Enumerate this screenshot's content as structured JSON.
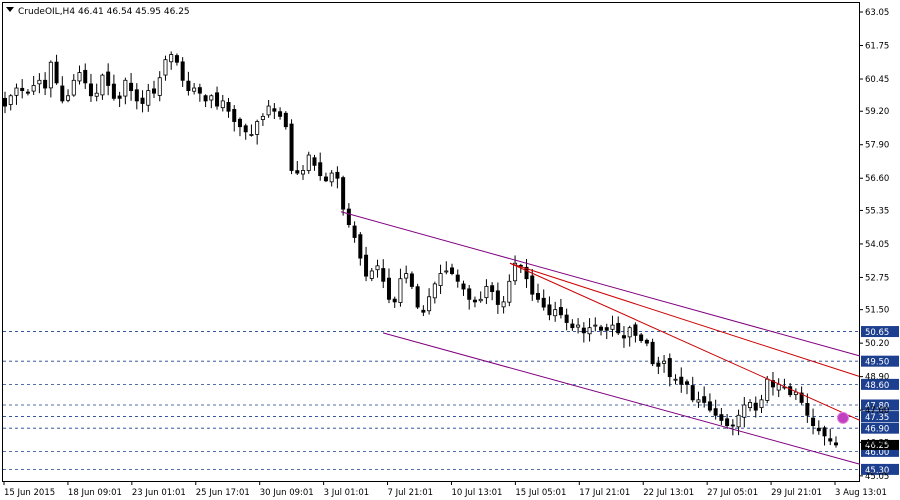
{
  "header": {
    "symbol": "CrudeOIL,H4",
    "ohlc": "46.41 46.54 45.95 46.25"
  },
  "colors": {
    "background": "#ffffff",
    "candle": "#000000",
    "level_line": "#1c3f8f",
    "level_box": "#1c3f8f",
    "channel": "#800080",
    "fan": "#cc0000",
    "marker": "#c040c0"
  },
  "chart_data": {
    "type": "candlestick",
    "title": "CrudeOIL,H4",
    "ylim": [
      44.85,
      63.4
    ],
    "y_ticks": [
      "63.05",
      "61.75",
      "60.45",
      "59.20",
      "57.90",
      "56.60",
      "55.35",
      "54.05",
      "52.75",
      "51.50",
      "50.20",
      "48.90",
      "47.60",
      "46.35",
      "45.05"
    ],
    "x_ticks": [
      "15 Jun 2015",
      "18 Jun 09:01",
      "23 Jun 01:01",
      "25 Jun 17:01",
      "30 Jun 09:01",
      "3 Jul 01:01",
      "7 Jul 21:01",
      "10 Jul 13:01",
      "15 Jul 05:01",
      "17 Jul 21:01",
      "22 Jul 13:01",
      "27 Jul 05:01",
      "29 Jul 21:01",
      "3 Aug 13:01"
    ],
    "levels": [
      "50.65",
      "49.50",
      "48.60",
      "47.80",
      "47.35",
      "46.90",
      "46.00",
      "45.30"
    ],
    "current_price": "46.25",
    "closes": [
      59.4,
      59.8,
      60.1,
      60.0,
      59.9,
      60.2,
      60.4,
      60.1,
      61.1,
      60.3,
      59.6,
      59.8,
      60.4,
      60.7,
      60.3,
      59.8,
      59.9,
      60.6,
      60.2,
      59.7,
      59.7,
      60.4,
      60.0,
      59.6,
      59.5,
      60.0,
      59.9,
      60.5,
      61.2,
      61.4,
      61.1,
      60.4,
      60.0,
      60.1,
      59.9,
      59.6,
      59.8,
      59.4,
      59.6,
      59.2,
      58.8,
      58.6,
      58.4,
      58.3,
      58.8,
      59.0,
      59.4,
      59.2,
      59.0,
      58.6,
      56.9,
      56.8,
      56.9,
      57.5,
      57.1,
      56.7,
      56.5,
      56.8,
      56.6,
      55.4,
      54.8,
      54.3,
      53.5,
      52.8,
      53.0,
      53.2,
      52.6,
      51.9,
      51.8,
      52.7,
      52.9,
      52.4,
      51.6,
      51.4,
      52.0,
      52.5,
      52.9,
      53.0,
      52.9,
      52.6,
      52.3,
      51.9,
      51.8,
      51.9,
      52.4,
      52.2,
      51.7,
      51.8,
      52.6,
      53.3,
      53.2,
      52.7,
      52.1,
      51.9,
      51.6,
      51.3,
      51.5,
      51.3,
      51.0,
      50.8,
      50.9,
      50.6,
      50.8,
      50.9,
      50.7,
      50.7,
      50.9,
      50.6,
      50.4,
      50.8,
      50.5,
      50.3,
      50.2,
      49.4,
      49.3,
      49.5,
      48.9,
      48.8,
      48.6,
      48.6,
      48.0,
      48.0,
      47.9,
      47.6,
      47.4,
      47.2,
      47.0,
      47.0,
      47.4,
      47.8,
      47.9,
      47.6,
      48.0,
      48.8,
      48.5,
      48.6,
      48.5,
      48.2,
      48.3,
      47.9,
      47.4,
      47.0,
      46.8,
      46.6,
      46.4,
      46.25
    ],
    "annotations": [
      {
        "type": "channel_upper",
        "from": [
          341,
          55.3
        ],
        "to": [
          860,
          49.7
        ]
      },
      {
        "type": "channel_lower",
        "from": [
          383,
          50.6
        ],
        "to": [
          860,
          45.5
        ]
      },
      {
        "type": "fan_line",
        "from": [
          510,
          53.3
        ],
        "to": [
          860,
          48.9
        ]
      },
      {
        "type": "fan_line",
        "from": [
          510,
          53.3
        ],
        "to": [
          860,
          47.2
        ]
      }
    ]
  }
}
